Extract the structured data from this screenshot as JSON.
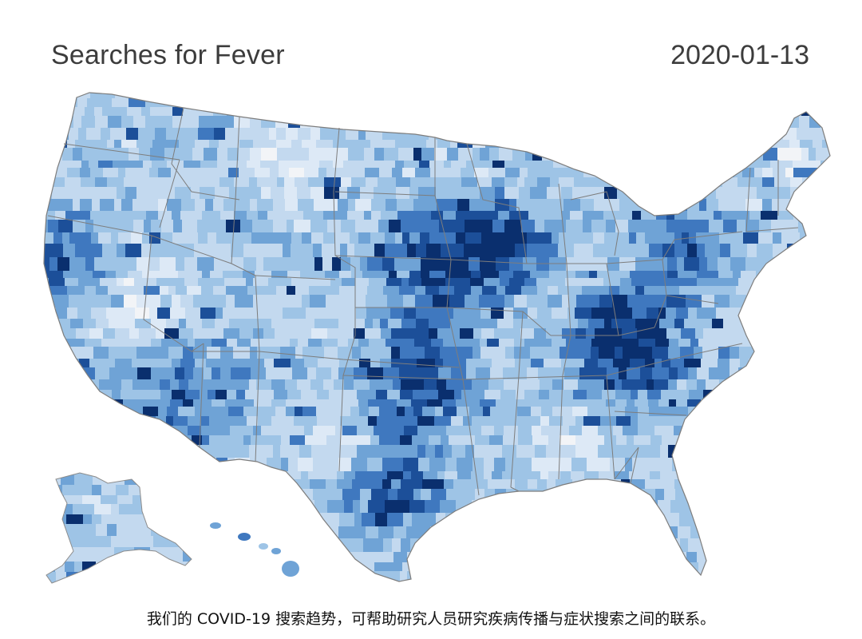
{
  "header": {
    "title": "Searches for Fever",
    "date": "2020-01-13"
  },
  "caption": "我们的 COVID-19 搜索趋势，可帮助研究人员研究疾病传播与症状搜索之间的联系。",
  "map": {
    "region": "United States (contiguous, Alaska, Hawaii)",
    "unit": "county",
    "palette": [
      "#f2f4f7",
      "#dde9f6",
      "#c3d9ef",
      "#9ec4e6",
      "#6fa3d6",
      "#3f78bf",
      "#1c4f99",
      "#0a2f6e"
    ],
    "border_color": "#8c8c8c"
  }
}
